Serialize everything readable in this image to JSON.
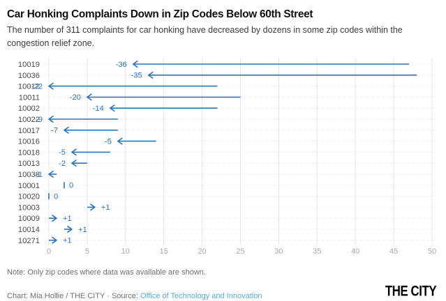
{
  "header": {
    "title": "Car Honking Complaints Down in Zip Codes Below 60th Street",
    "subtitle": "The number of 311 complaints for car honking have decreased by dozens in some zip codes within the congestion relief zone."
  },
  "chart_data": {
    "type": "arrow",
    "title": "Car Honking Complaints Down in Zip Codes Below 60th Street",
    "categories": [
      "10019",
      "10036",
      "10012",
      "10011",
      "10002",
      "10022",
      "10017",
      "10016",
      "10018",
      "10013",
      "10038",
      "10001",
      "10020",
      "10003",
      "10009",
      "10014",
      "10271"
    ],
    "series": [
      {
        "name": "start",
        "values": [
          47,
          48,
          22,
          25,
          22,
          9,
          9,
          14,
          8,
          5,
          1,
          2,
          0,
          5,
          0,
          2,
          0
        ]
      },
      {
        "name": "end",
        "values": [
          11,
          13,
          0,
          5,
          8,
          0,
          2,
          9,
          3,
          3,
          0,
          2,
          0,
          6,
          1,
          3,
          1
        ]
      }
    ],
    "change_labels": [
      "-36",
      "-35",
      "-22",
      "-20",
      "-14",
      "-9",
      "-7",
      "-5",
      "-5",
      "-2",
      "-1",
      "0",
      "0",
      "+1",
      "+1",
      "+1",
      "+1"
    ],
    "xlabel": "",
    "ylabel": "",
    "xlim": [
      0,
      50
    ],
    "xticks": [
      0,
      5,
      10,
      15,
      20,
      25,
      30,
      35,
      40,
      45,
      50
    ],
    "grid": "vertical",
    "legend": "none",
    "arrow_color": "#2e74b8"
  },
  "footer": {
    "note": "Note: Only zip codes where data was available are shown.",
    "credit_prefix": "Chart: Mia Hollie / THE CITY · Source: ",
    "source_label": "Office of Technology and Innovation",
    "logo": "THE CITY"
  },
  "colors": {
    "accent_blue": "#2e74b8",
    "link": "#58a9d4",
    "grid": "#e4e4e4",
    "row_guide": "#e9e9e9",
    "tick_text": "#a9a9a9",
    "zip_text": "#4a4a4a",
    "title_text": "#0f0f0f",
    "subtitle_text": "#3d3d3d",
    "note_text": "#6f6f6f"
  }
}
